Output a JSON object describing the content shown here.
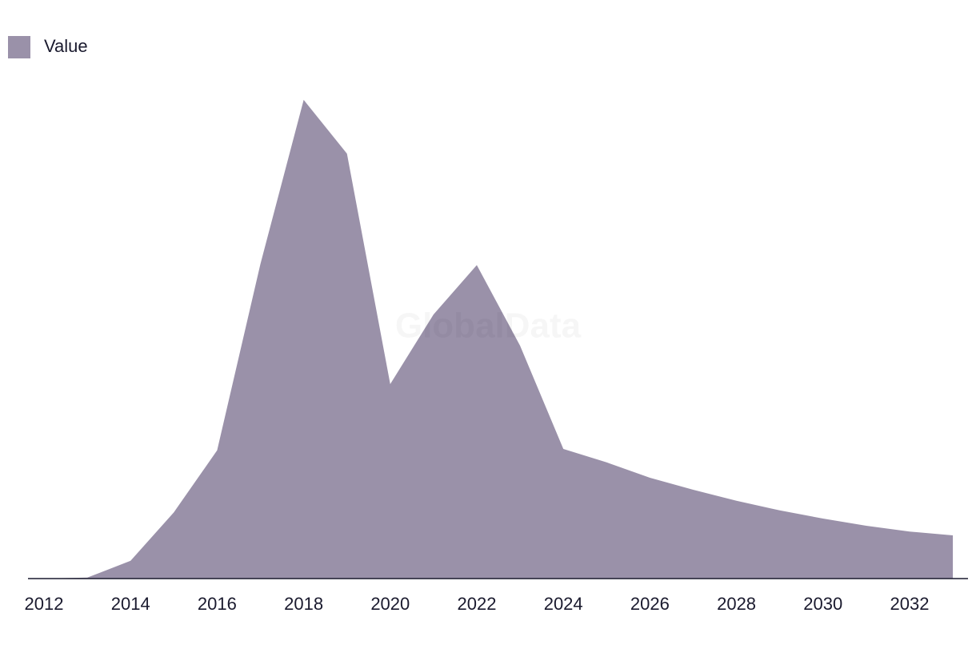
{
  "chart_data": {
    "type": "area",
    "watermark": "GlobalData",
    "x": [
      2012,
      2013,
      2014,
      2015,
      2016,
      2017,
      2018,
      2019,
      2020,
      2021,
      2022,
      2023,
      2024,
      2025,
      2026,
      2027,
      2028,
      2029,
      2030,
      2031,
      2032,
      2033
    ],
    "series": [
      {
        "name": "Value",
        "color": "#9a91a9",
        "values": [
          0,
          0.2,
          3.7,
          13.8,
          26.7,
          65.5,
          99.7,
          88.5,
          40.5,
          55,
          65.3,
          48.5,
          27,
          24.2,
          21,
          18.5,
          16.2,
          14.2,
          12.5,
          11,
          9.8,
          9
        ]
      }
    ],
    "xlim": [
      2011.63,
      2033.35
    ],
    "xticks": [
      2012,
      2014,
      2016,
      2018,
      2020,
      2022,
      2024,
      2026,
      2028,
      2030,
      2032
    ],
    "ylim": [
      0,
      100
    ],
    "legend": "top-left"
  }
}
